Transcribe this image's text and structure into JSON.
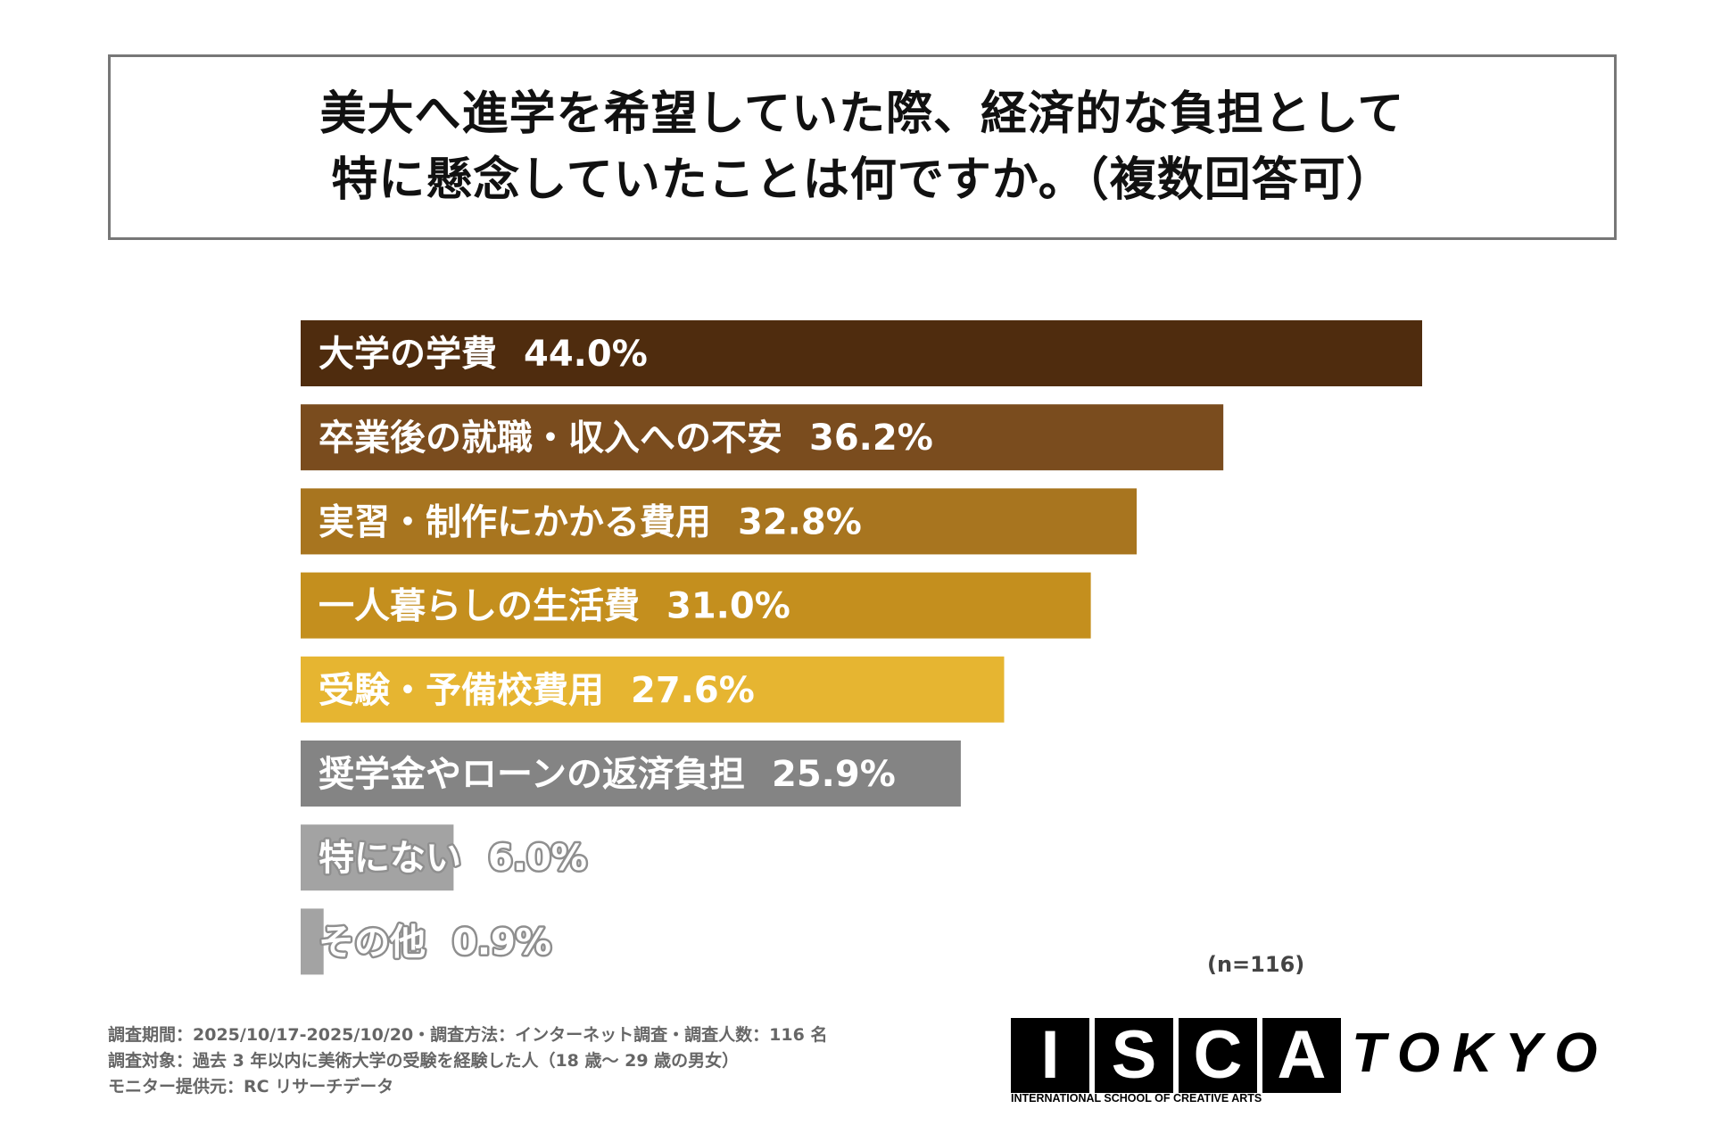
{
  "title": {
    "line1": "美大へ進学を希望していた際、経済的な負担として",
    "line2": "特に懸念していたことは何ですか。（複数回答可）"
  },
  "chart_data": {
    "type": "bar",
    "orientation": "horizontal",
    "categories": [
      "大学の学費",
      "卒業後の就職・収入への不安",
      "実習・制作にかかる費用",
      "一人暮らしの生活費",
      "受験・予備校費用",
      "奨学金やローンの返済負担",
      "特にない",
      "その他"
    ],
    "values": [
      44.0,
      36.2,
      32.8,
      31.0,
      27.6,
      25.9,
      6.0,
      0.9
    ],
    "value_labels": [
      "44.0%",
      "36.2%",
      "32.8%",
      "31.0%",
      "27.6%",
      "25.9%",
      "6.0%",
      "0.9%"
    ],
    "colors": [
      "#4f2c0e",
      "#7a4c1e",
      "#a8751f",
      "#c48f1e",
      "#e6b531",
      "#848484",
      "#a3a3a3",
      "#a3a3a3"
    ],
    "label_colors": [
      "#ffffff",
      "#ffffff",
      "#ffffff",
      "#ffffff",
      "#ffffff",
      "#ffffff",
      "#ffffff",
      "#ffffff"
    ],
    "label_outline": [
      false,
      false,
      false,
      false,
      false,
      false,
      true,
      true
    ],
    "sample_note": "(n=116)"
  },
  "footnotes": [
    "調査期間：2025/10/17-2025/10/20・調査方法：インターネット調査・調査人数：116 名",
    "調査対象：過去 3 年以内に美術大学の受験を経験した人（18 歳〜 29 歳の男女）",
    "モニター提供元：RC リサーチデータ"
  ],
  "logo": {
    "letters": [
      "I",
      "S",
      "C",
      "A"
    ],
    "word": "TOKYO",
    "subtitle": "INTERNATIONAL SCHOOL OF CREATIVE ARTS"
  }
}
